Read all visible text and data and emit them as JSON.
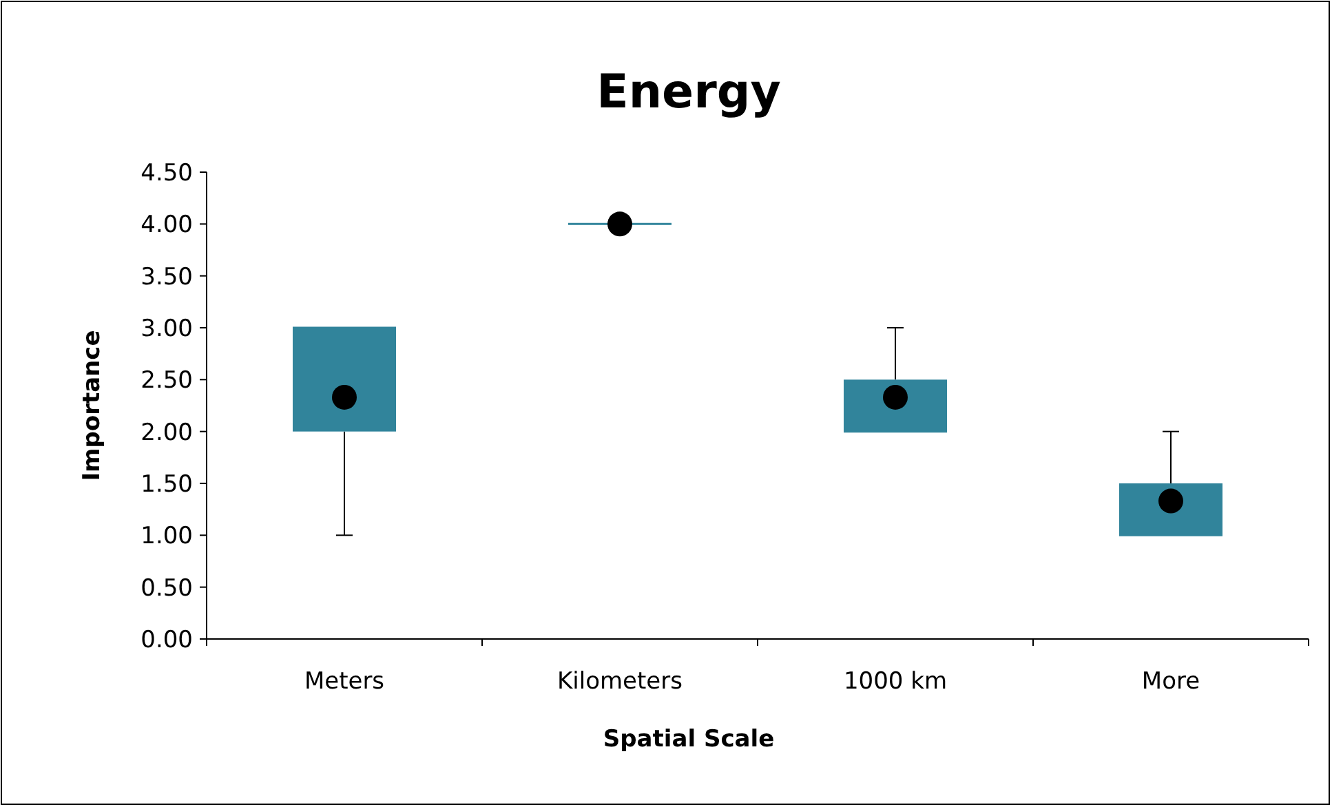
{
  "chart_data": {
    "type": "box",
    "title": "Energy",
    "xlabel": "Spatial Scale",
    "ylabel": "Importance",
    "categories": [
      "Meters",
      "Kilometers",
      "1000 km",
      "More"
    ],
    "color": "#31849b",
    "boxes": [
      {
        "low": 1,
        "q1": 2,
        "median": 3,
        "q3": 3,
        "high": 3,
        "mean": 2.33
      },
      {
        "low": 4,
        "q1": 4,
        "median": 4,
        "q3": 4,
        "high": 4,
        "mean": 4
      },
      {
        "low": 2,
        "q1": 2,
        "median": 2,
        "q3": 2.5,
        "high": 3,
        "mean": 2.33
      },
      {
        "low": 1,
        "q1": 1,
        "median": 1,
        "q3": 1.5,
        "high": 2,
        "mean": 1.33
      }
    ],
    "ylim": [
      0,
      4.5
    ],
    "yticks": [
      {
        "value": 0,
        "label": "0.00"
      },
      {
        "value": 0.5,
        "label": "0.50"
      },
      {
        "value": 1,
        "label": "1.00"
      },
      {
        "value": 1.5,
        "label": "1.50"
      },
      {
        "value": 2,
        "label": "2.00"
      },
      {
        "value": 2.5,
        "label": "2.50"
      },
      {
        "value": 3,
        "label": "3.00"
      },
      {
        "value": 3.5,
        "label": "3.50"
      },
      {
        "value": 4,
        "label": "4.00"
      },
      {
        "value": 4.5,
        "label": "4.50"
      }
    ],
    "grid": false
  }
}
